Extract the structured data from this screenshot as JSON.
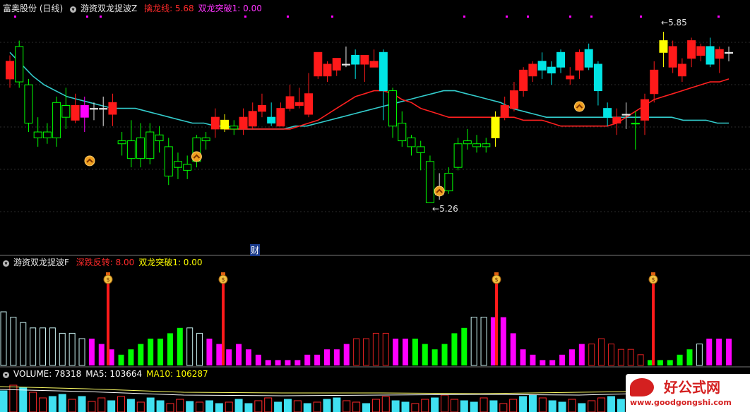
{
  "main_panel": {
    "stock_name": "富奥股份 (日线)",
    "indicator_name": "游资双龙捉波Z",
    "values": [
      {
        "label": "擒龙线: 5.68",
        "color": "#ff2a2a"
      },
      {
        "label": "双龙突破1: 0.00",
        "color": "#ff33ff"
      }
    ],
    "high_label": "5.85",
    "low_label": "5.26",
    "finance_badge": "财"
  },
  "mid_panel": {
    "indicator_name": "游资双龙捉波F",
    "values": [
      {
        "label": "深跌反转: 8.00",
        "color": "#ff2a2a"
      },
      {
        "label": "双龙突破1: 0.00",
        "color": "#ffff00"
      }
    ]
  },
  "vol_panel": {
    "values": [
      {
        "label": "VOLUME: 78318",
        "color": "#ffffff"
      },
      {
        "label": "MA5: 103664",
        "color": "#ffffff"
      },
      {
        "label": "MA10: 106287",
        "color": "#ffff00"
      }
    ]
  },
  "watermark": {
    "title": "好公式网",
    "url": "www.goodgongshi.com"
  },
  "colors": {
    "up": "#ff1a1a",
    "down": "#00e5e5",
    "green": "#00ff00",
    "magenta": "#ff00ff",
    "yellow": "#ffff00",
    "cyan_ma": "#33cccc",
    "red_ma": "#ff2020",
    "grid": "#2b2b2b"
  },
  "chart_data": [
    {
      "type": "candlestick",
      "title": "富奥股份 (日线)",
      "y_high_marker": 5.85,
      "y_low_marker": 5.26,
      "candles": [
        {
          "o": 5.68,
          "c": 5.74,
          "h": 5.76,
          "l": 5.65,
          "k": "up"
        },
        {
          "o": 5.79,
          "c": 5.67,
          "h": 5.81,
          "l": 5.65,
          "k": "green"
        },
        {
          "o": 5.66,
          "c": 5.53,
          "h": 5.68,
          "l": 5.5,
          "k": "green"
        },
        {
          "o": 5.5,
          "c": 5.48,
          "h": 5.55,
          "l": 5.45,
          "k": "green"
        },
        {
          "o": 5.5,
          "c": 5.48,
          "h": 5.53,
          "l": 5.46,
          "k": "green"
        },
        {
          "o": 5.48,
          "c": 5.6,
          "h": 5.62,
          "l": 5.45,
          "k": "green"
        },
        {
          "o": 5.59,
          "c": 5.55,
          "h": 5.65,
          "l": 5.51,
          "k": "green"
        },
        {
          "o": 5.54,
          "c": 5.59,
          "h": 5.63,
          "l": 5.53,
          "k": "up"
        },
        {
          "o": 5.59,
          "c": 5.55,
          "h": 5.62,
          "l": 5.5,
          "k": "magenta"
        },
        {
          "o": 5.58,
          "c": 5.58,
          "h": 5.6,
          "l": 5.54,
          "k": "cross"
        },
        {
          "o": 5.58,
          "c": 5.58,
          "h": 5.62,
          "l": 5.52,
          "k": "cross"
        },
        {
          "o": 5.56,
          "c": 5.6,
          "h": 5.63,
          "l": 5.52,
          "k": "up"
        },
        {
          "o": 5.47,
          "c": 5.46,
          "h": 5.5,
          "l": 5.42,
          "k": "green"
        },
        {
          "o": 5.47,
          "c": 5.41,
          "h": 5.54,
          "l": 5.38,
          "k": "green"
        },
        {
          "o": 5.41,
          "c": 5.48,
          "h": 5.53,
          "l": 5.38,
          "k": "green"
        },
        {
          "o": 5.5,
          "c": 5.41,
          "h": 5.53,
          "l": 5.39,
          "k": "green"
        },
        {
          "o": 5.49,
          "c": 5.47,
          "h": 5.52,
          "l": 5.43,
          "k": "green"
        },
        {
          "o": 5.45,
          "c": 5.35,
          "h": 5.48,
          "l": 5.32,
          "k": "green"
        },
        {
          "o": 5.4,
          "c": 5.38,
          "h": 5.43,
          "l": 5.34,
          "k": "green"
        },
        {
          "o": 5.37,
          "c": 5.39,
          "h": 5.42,
          "l": 5.34,
          "k": "green"
        },
        {
          "o": 5.4,
          "c": 5.48,
          "h": 5.49,
          "l": 5.38,
          "k": "green"
        },
        {
          "o": 5.47,
          "c": 5.48,
          "h": 5.5,
          "l": 5.44,
          "k": "green"
        },
        {
          "o": 5.51,
          "c": 5.55,
          "h": 5.58,
          "l": 5.48,
          "k": "up"
        },
        {
          "o": 5.51,
          "c": 5.54,
          "h": 5.56,
          "l": 5.5,
          "k": "yellow"
        },
        {
          "o": 5.52,
          "c": 5.51,
          "h": 5.54,
          "l": 5.49,
          "k": "green"
        },
        {
          "o": 5.51,
          "c": 5.55,
          "h": 5.58,
          "l": 5.49,
          "k": "up"
        },
        {
          "o": 5.52,
          "c": 5.57,
          "h": 5.6,
          "l": 5.51,
          "k": "up"
        },
        {
          "o": 5.57,
          "c": 5.59,
          "h": 5.63,
          "l": 5.55,
          "k": "up"
        },
        {
          "o": 5.55,
          "c": 5.53,
          "h": 5.6,
          "l": 5.52,
          "k": "down"
        },
        {
          "o": 5.52,
          "c": 5.58,
          "h": 5.6,
          "l": 5.52,
          "k": "up"
        },
        {
          "o": 5.58,
          "c": 5.62,
          "h": 5.66,
          "l": 5.57,
          "k": "up"
        },
        {
          "o": 5.59,
          "c": 5.6,
          "h": 5.65,
          "l": 5.58,
          "k": "up"
        },
        {
          "o": 5.56,
          "c": 5.63,
          "h": 5.7,
          "l": 5.55,
          "k": "up"
        },
        {
          "o": 5.69,
          "c": 5.77,
          "h": 5.77,
          "l": 5.68,
          "k": "up"
        },
        {
          "o": 5.69,
          "c": 5.73,
          "h": 5.74,
          "l": 5.67,
          "k": "up"
        },
        {
          "o": 5.75,
          "c": 5.71,
          "h": 5.75,
          "l": 5.69,
          "k": "up"
        },
        {
          "o": 5.73,
          "c": 5.73,
          "h": 5.79,
          "l": 5.72,
          "k": "cross"
        },
        {
          "o": 5.76,
          "c": 5.73,
          "h": 5.78,
          "l": 5.68,
          "k": "down"
        },
        {
          "o": 5.76,
          "c": 5.73,
          "h": 5.76,
          "l": 5.67,
          "k": "up"
        },
        {
          "o": 5.74,
          "c": 5.72,
          "h": 5.78,
          "l": 5.72,
          "k": "up"
        },
        {
          "o": 5.77,
          "c": 5.64,
          "h": 5.78,
          "l": 5.54,
          "k": "down"
        },
        {
          "o": 5.64,
          "c": 5.52,
          "h": 5.65,
          "l": 5.48,
          "k": "green"
        },
        {
          "o": 5.53,
          "c": 5.47,
          "h": 5.57,
          "l": 5.45,
          "k": "green"
        },
        {
          "o": 5.48,
          "c": 5.45,
          "h": 5.49,
          "l": 5.42,
          "k": "green"
        },
        {
          "o": 5.45,
          "c": 5.43,
          "h": 5.47,
          "l": 5.37,
          "k": "green"
        },
        {
          "o": 5.4,
          "c": 5.26,
          "h": 5.42,
          "l": 5.26,
          "k": "green"
        },
        {
          "o": 5.29,
          "c": 5.29,
          "h": 5.36,
          "l": 5.27,
          "k": "cross"
        },
        {
          "o": 5.3,
          "c": 5.36,
          "h": 5.38,
          "l": 5.29,
          "k": "green"
        },
        {
          "o": 5.38,
          "c": 5.46,
          "h": 5.48,
          "l": 5.37,
          "k": "green"
        },
        {
          "o": 5.46,
          "c": 5.47,
          "h": 5.51,
          "l": 5.44,
          "k": "green"
        },
        {
          "o": 5.45,
          "c": 5.46,
          "h": 5.49,
          "l": 5.43,
          "k": "green"
        },
        {
          "o": 5.45,
          "c": 5.46,
          "h": 5.48,
          "l": 5.43,
          "k": "green"
        },
        {
          "o": 5.48,
          "c": 5.55,
          "h": 5.57,
          "l": 5.45,
          "k": "yellow"
        },
        {
          "o": 5.55,
          "c": 5.59,
          "h": 5.62,
          "l": 5.54,
          "k": "up"
        },
        {
          "o": 5.58,
          "c": 5.64,
          "h": 5.67,
          "l": 5.57,
          "k": "up"
        },
        {
          "o": 5.64,
          "c": 5.71,
          "h": 5.72,
          "l": 5.62,
          "k": "up"
        },
        {
          "o": 5.69,
          "c": 5.73,
          "h": 5.74,
          "l": 5.67,
          "k": "up"
        },
        {
          "o": 5.74,
          "c": 5.71,
          "h": 5.77,
          "l": 5.68,
          "k": "down"
        },
        {
          "o": 5.7,
          "c": 5.72,
          "h": 5.74,
          "l": 5.66,
          "k": "down"
        },
        {
          "o": 5.77,
          "c": 5.72,
          "h": 5.78,
          "l": 5.7,
          "k": "down"
        },
        {
          "o": 5.69,
          "c": 5.68,
          "h": 5.72,
          "l": 5.66,
          "k": "up"
        },
        {
          "o": 5.71,
          "c": 5.77,
          "h": 5.78,
          "l": 5.68,
          "k": "up"
        },
        {
          "o": 5.78,
          "c": 5.72,
          "h": 5.8,
          "l": 5.71,
          "k": "down"
        },
        {
          "o": 5.73,
          "c": 5.64,
          "h": 5.74,
          "l": 5.59,
          "k": "down"
        },
        {
          "o": 5.58,
          "c": 5.55,
          "h": 5.6,
          "l": 5.52,
          "k": "down"
        },
        {
          "o": 5.55,
          "c": 5.53,
          "h": 5.58,
          "l": 5.49,
          "k": "up"
        },
        {
          "o": 5.56,
          "c": 5.56,
          "h": 5.6,
          "l": 5.51,
          "k": "cross"
        },
        {
          "o": 5.53,
          "c": 5.53,
          "h": 5.57,
          "l": 5.44,
          "k": "green"
        },
        {
          "o": 5.54,
          "c": 5.61,
          "h": 5.63,
          "l": 5.49,
          "k": "up"
        },
        {
          "o": 5.63,
          "c": 5.71,
          "h": 5.74,
          "l": 5.6,
          "k": "up"
        },
        {
          "o": 5.77,
          "c": 5.81,
          "h": 5.84,
          "l": 5.72,
          "k": "yellow"
        },
        {
          "o": 5.79,
          "c": 5.72,
          "h": 5.81,
          "l": 5.7,
          "k": "up"
        },
        {
          "o": 5.73,
          "c": 5.69,
          "h": 5.75,
          "l": 5.67,
          "k": "up"
        },
        {
          "o": 5.75,
          "c": 5.81,
          "h": 5.82,
          "l": 5.72,
          "k": "up"
        },
        {
          "o": 5.79,
          "c": 5.76,
          "h": 5.8,
          "l": 5.74,
          "k": "up"
        },
        {
          "o": 5.79,
          "c": 5.73,
          "h": 5.82,
          "l": 5.72,
          "k": "down"
        },
        {
          "o": 5.75,
          "c": 5.78,
          "h": 5.79,
          "l": 5.7,
          "k": "up"
        },
        {
          "o": 5.77,
          "c": 5.77,
          "h": 5.79,
          "l": 5.74,
          "k": "cross"
        }
      ],
      "ma_cyan": [
        5.77,
        5.73,
        5.69,
        5.66,
        5.64,
        5.62,
        5.61,
        5.6,
        5.59,
        5.58,
        5.58,
        5.58,
        5.57,
        5.56,
        5.55,
        5.54,
        5.53,
        5.53,
        5.52,
        5.52,
        5.51,
        5.51,
        5.51,
        5.51,
        5.51,
        5.52,
        5.52,
        5.53,
        5.54,
        5.55,
        5.56,
        5.57,
        5.58,
        5.59,
        5.6,
        5.61,
        5.62,
        5.63,
        5.64,
        5.64,
        5.63,
        5.62,
        5.61,
        5.6,
        5.58,
        5.57,
        5.56,
        5.55,
        5.55,
        5.55,
        5.55,
        5.55,
        5.55,
        5.55,
        5.55,
        5.55,
        5.55,
        5.55,
        5.55,
        5.54,
        5.54,
        5.54,
        5.53,
        5.53
      ],
      "ma_red": [
        5.51,
        5.51,
        5.51,
        5.51,
        5.51,
        5.51,
        5.51,
        5.51,
        5.52,
        5.53,
        5.54,
        5.56,
        5.58,
        5.6,
        5.62,
        5.63,
        5.64,
        5.64,
        5.63,
        5.61,
        5.6,
        5.58,
        5.57,
        5.56,
        5.55,
        5.55,
        5.55,
        5.55,
        5.55,
        5.55,
        5.55,
        5.55,
        5.54,
        5.54,
        5.54,
        5.53,
        5.52,
        5.52,
        5.52,
        5.52,
        5.52,
        5.52,
        5.53,
        5.55,
        5.57,
        5.59,
        5.61,
        5.62,
        5.63,
        5.64,
        5.65,
        5.66,
        5.67,
        5.67,
        5.68
      ],
      "signal_arrows_at": [
        9,
        20,
        46,
        61
      ]
    },
    {
      "type": "bar",
      "title": "游资双龙捉波F",
      "values": [
        10,
        9,
        8,
        7,
        7,
        7,
        6,
        6,
        5,
        5,
        4,
        3,
        2,
        3,
        4,
        5,
        5,
        6,
        7,
        7,
        6,
        5,
        4,
        3,
        4,
        3,
        2,
        1,
        1,
        1,
        1,
        2,
        2,
        3,
        3,
        4,
        5,
        5,
        6,
        6,
        5,
        5,
        5,
        4,
        3,
        4,
        6,
        7,
        9,
        9,
        9,
        9,
        6,
        3,
        2,
        1,
        1,
        2,
        3,
        4,
        4,
        5,
        4,
        3,
        3,
        2,
        1,
        1,
        1,
        2,
        3,
        4,
        5,
        5,
        5
      ],
      "kinds": [
        "hc",
        "hc",
        "hc",
        "hc",
        "hc",
        "hc",
        "hc",
        "hc",
        "hc",
        "m",
        "m",
        "m",
        "g",
        "g",
        "g",
        "g",
        "g",
        "g",
        "g",
        "hc",
        "hc",
        "m",
        "m",
        "m",
        "m",
        "m",
        "m",
        "m",
        "m",
        "m",
        "m",
        "m",
        "m",
        "m",
        "m",
        "m",
        "hr",
        "hr",
        "hr",
        "hr",
        "m",
        "m",
        "g",
        "g",
        "g",
        "g",
        "g",
        "g",
        "hc",
        "hc",
        "m",
        "m",
        "m",
        "m",
        "m",
        "m",
        "m",
        "m",
        "m",
        "m",
        "hr",
        "hr",
        "hr",
        "hr",
        "hr",
        "hr",
        "g",
        "g",
        "g",
        "g",
        "g",
        "hc",
        "m",
        "m",
        "m"
      ],
      "spikes_at": [
        9,
        20,
        46,
        61
      ]
    },
    {
      "type": "bar",
      "title": "VOLUME",
      "series": [
        {
          "name": "VOLUME",
          "last": 78318
        },
        {
          "name": "MA5",
          "last": 103664
        },
        {
          "name": "MA10",
          "last": 106287
        }
      ]
    }
  ]
}
